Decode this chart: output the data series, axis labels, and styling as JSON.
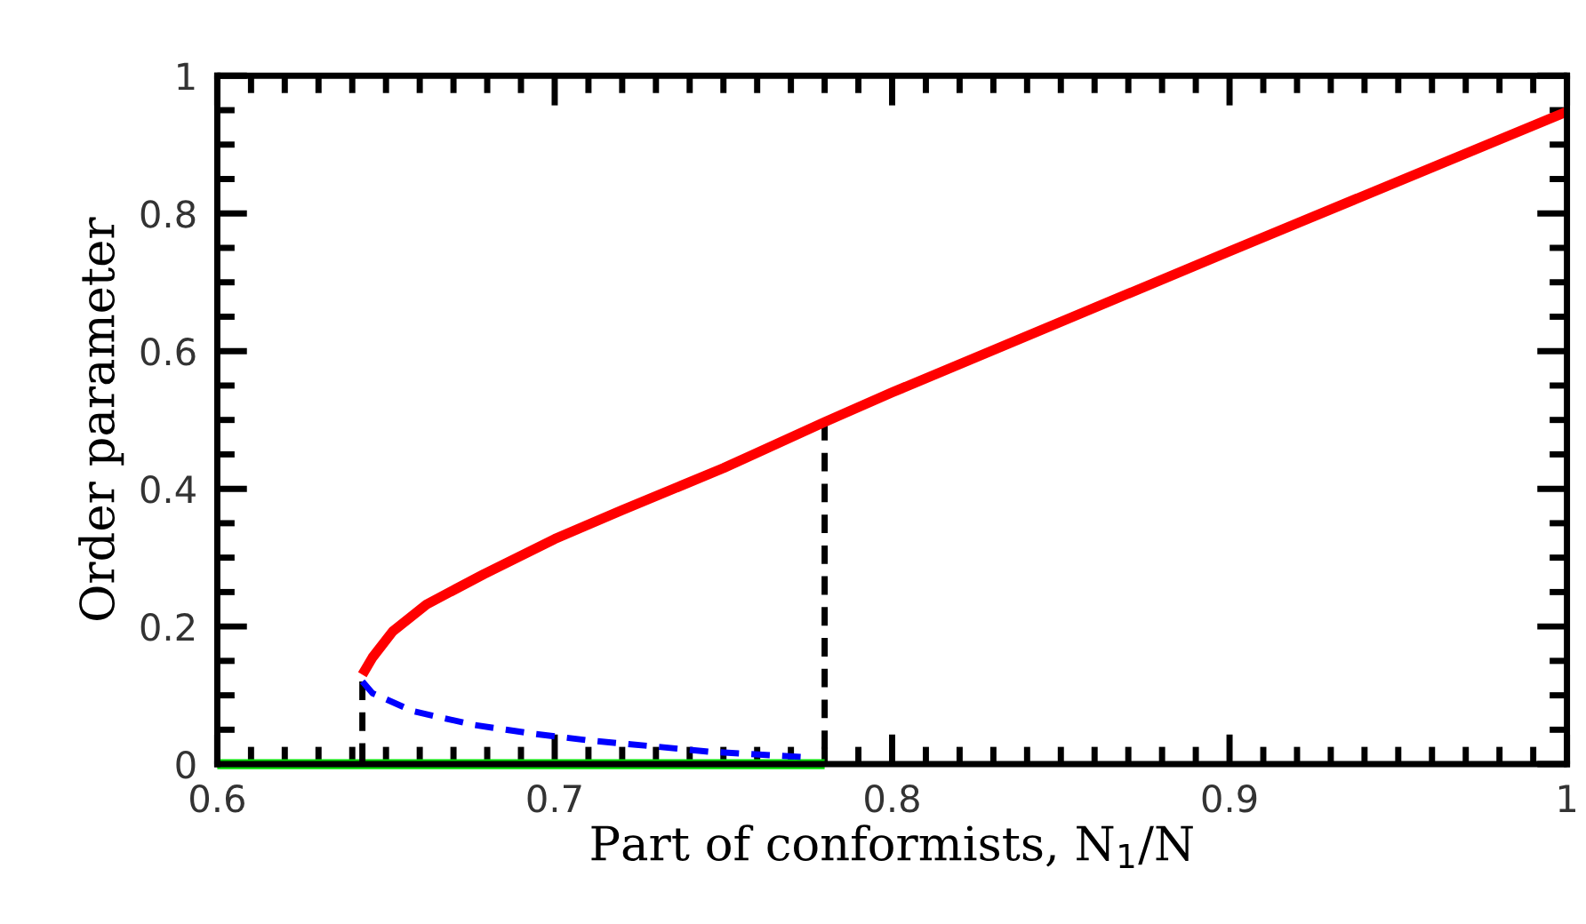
{
  "chart_data": {
    "type": "line",
    "xlabel": "Part of conformists, N$_{1}$/N",
    "ylabel": "Order parameter",
    "xlim": [
      0.6,
      1.0
    ],
    "ylim": [
      0,
      1
    ],
    "xticks": [
      0.6,
      0.7,
      0.8,
      0.9,
      1
    ],
    "yticks": [
      0,
      0.2,
      0.4,
      0.6,
      0.8,
      1
    ],
    "grid": false,
    "marker": "none",
    "series": [
      {
        "color": "#00e000",
        "line_style": "solid",
        "x": [
          0.6,
          0.78
        ],
        "values": [
          0,
          0
        ]
      },
      {
        "color": "#000000",
        "line_style": "dashed",
        "x": [
          0.643,
          0.643
        ],
        "values": [
          0.12,
          0
        ]
      },
      {
        "color": "#000000",
        "line_style": "dashed",
        "x": [
          0.78,
          0.78
        ],
        "values": [
          0.497,
          0
        ]
      },
      {
        "color": "#0000ff",
        "line_style": "dashed",
        "x": [
          0.643,
          0.646,
          0.658,
          0.676,
          0.694,
          0.711,
          0.729,
          0.746,
          0.764,
          0.775
        ],
        "values": [
          0.12,
          0.103,
          0.077,
          0.057,
          0.044,
          0.034,
          0.026,
          0.018,
          0.013,
          0.01
        ]
      },
      {
        "color": "#ff0000",
        "line_style": "solid",
        "x": [
          0.643,
          0.646,
          0.652,
          0.662,
          0.679,
          0.7,
          0.72,
          0.75,
          0.78,
          0.8,
          0.9,
          1.0
        ],
        "values": [
          0.13,
          0.155,
          0.193,
          0.232,
          0.276,
          0.327,
          0.369,
          0.43,
          0.497,
          0.54,
          0.745,
          0.948
        ]
      }
    ]
  }
}
